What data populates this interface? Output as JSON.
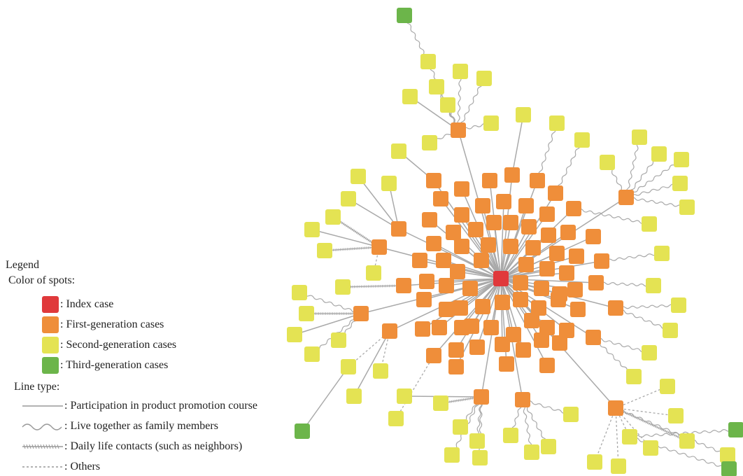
{
  "colors": {
    "index": "#E0393B",
    "first": "#EF8E3A",
    "second": "#E4E353",
    "third": "#6CB54A",
    "line": "#a9a9a9"
  },
  "legend": {
    "title": "Legend",
    "color_heading": "Color of spots:",
    "spots": [
      {
        "label": ": Index case",
        "color": "#E0393B"
      },
      {
        "label": ": First-generation cases",
        "color": "#EF8E3A"
      },
      {
        "label": ": Second-generation cases",
        "color": "#E4E353"
      },
      {
        "label": ": Third-generation cases",
        "color": "#6CB54A"
      }
    ],
    "line_heading": "Line type:",
    "lines": [
      {
        "label": ": Participation in product promotion course",
        "style": "solid"
      },
      {
        "label": ": Live together as family members",
        "style": "wavy"
      },
      {
        "label": ": Daily life contacts (such as neighbors)",
        "style": "hatched"
      },
      {
        "label": ": Others",
        "style": "dotted"
      }
    ]
  }
}
